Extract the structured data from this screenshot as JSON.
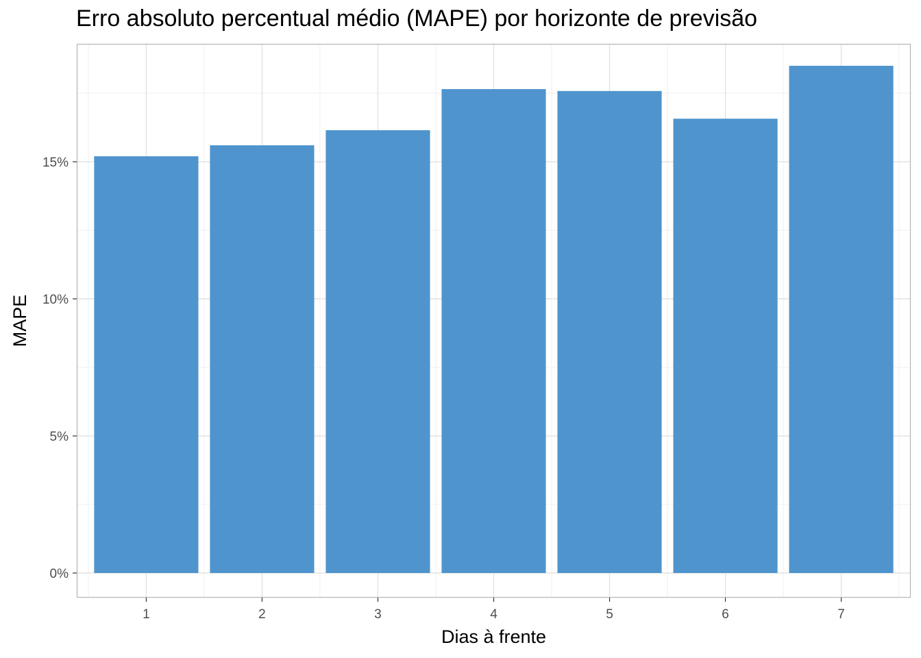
{
  "chart_data": {
    "type": "bar",
    "title": "Erro absoluto percentual médio (MAPE) por horizonte de previsão",
    "xlabel": "Dias à frente",
    "ylabel": "MAPE",
    "categories": [
      "1",
      "2",
      "3",
      "4",
      "5",
      "6",
      "7"
    ],
    "values": [
      15.2,
      15.6,
      16.15,
      17.65,
      17.58,
      16.57,
      18.5
    ],
    "value_unit": "%",
    "ylim": [
      -0.9,
      19.3
    ],
    "y_ticks": [
      0,
      5,
      10,
      15
    ],
    "y_tick_labels": [
      "0%",
      "5%",
      "10%",
      "15%"
    ],
    "grid": true,
    "legend": "none",
    "colors": {
      "bar": "#4f94cd",
      "panel_border": "#b3b3b3",
      "grid_major": "#dedede",
      "grid_minor": "#efefef",
      "tick_text": "#4d4d4d"
    }
  }
}
